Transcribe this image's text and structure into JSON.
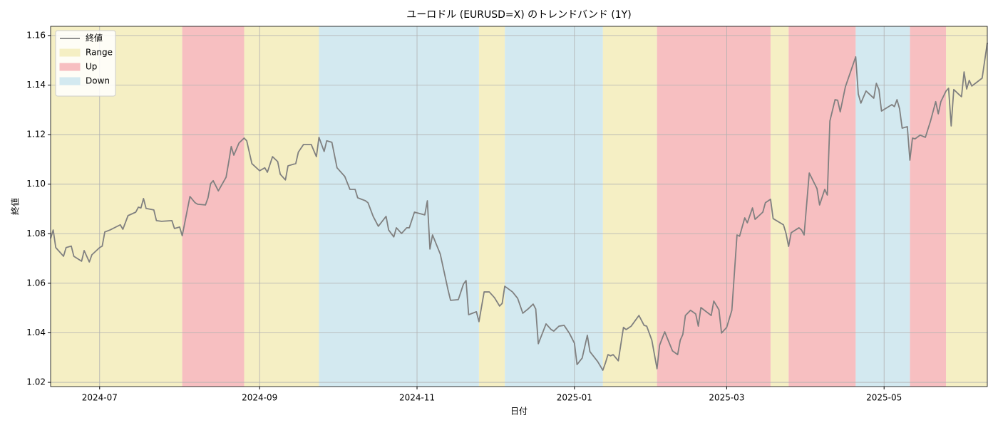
{
  "chart_data": {
    "type": "line",
    "title": "ユーロドル (EURUSD=X) のトレンドバンド (1Y)",
    "x_label": "日付",
    "y_label": "終値",
    "xlim": [
      "2024-06-12",
      "2025-06-10"
    ],
    "xticks": [
      "2024-07",
      "2024-09",
      "2024-11",
      "2025-01",
      "2025-03",
      "2025-05"
    ],
    "ylim": [
      1.0183,
      1.1637
    ],
    "yticks": [
      1.02,
      1.04,
      1.06,
      1.08,
      {
        "value": 1.1,
        "label": "1.10"
      },
      1.12,
      1.14,
      1.16
    ],
    "grid": true,
    "legend": "upper left",
    "x": [
      "2024-06-12",
      "2024-06-13",
      "2024-06-14",
      "2024-06-17",
      "2024-06-18",
      "2024-06-20",
      "2024-06-21",
      "2024-06-24",
      "2024-06-25",
      "2024-06-27",
      "2024-06-28",
      "2024-07-01",
      "2024-07-02",
      "2024-07-03",
      "2024-07-05",
      "2024-07-09",
      "2024-07-10",
      "2024-07-12",
      "2024-07-15",
      "2024-07-16",
      "2024-07-17",
      "2024-07-18",
      "2024-07-19",
      "2024-07-22",
      "2024-07-23",
      "2024-07-25",
      "2024-07-29",
      "2024-07-30",
      "2024-08-01",
      "2024-08-02",
      "2024-08-05",
      "2024-08-07",
      "2024-08-08",
      "2024-08-11",
      "2024-08-12",
      "2024-08-13",
      "2024-08-14",
      "2024-08-16",
      "2024-08-19",
      "2024-08-20",
      "2024-08-21",
      "2024-08-22",
      "2024-08-24",
      "2024-08-26",
      "2024-08-27",
      "2024-08-29",
      "2024-09-01",
      "2024-09-03",
      "2024-09-04",
      "2024-09-06",
      "2024-09-08",
      "2024-09-09",
      "2024-09-11",
      "2024-09-12",
      "2024-09-15",
      "2024-09-16",
      "2024-09-18",
      "2024-09-21",
      "2024-09-23",
      "2024-09-24",
      "2024-09-26",
      "2024-09-27",
      "2024-09-29",
      "2024-10-01",
      "2024-10-04",
      "2024-10-06",
      "2024-10-08",
      "2024-10-09",
      "2024-10-12",
      "2024-10-13",
      "2024-10-15",
      "2024-10-17",
      "2024-10-20",
      "2024-10-21",
      "2024-10-23",
      "2024-10-24",
      "2024-10-26",
      "2024-10-28",
      "2024-10-29",
      "2024-10-31",
      "2024-11-04",
      "2024-11-05",
      "2024-11-06",
      "2024-11-07",
      "2024-11-10",
      "2024-11-13",
      "2024-11-14",
      "2024-11-17",
      "2024-11-19",
      "2024-11-20",
      "2024-11-21",
      "2024-11-24",
      "2024-11-25",
      "2024-11-27",
      "2024-11-29",
      "2024-12-01",
      "2024-12-03",
      "2024-12-04",
      "2024-12-05",
      "2024-12-08",
      "2024-12-10",
      "2024-12-12",
      "2024-12-14",
      "2024-12-16",
      "2024-12-17",
      "2024-12-18",
      "2024-12-21",
      "2024-12-23",
      "2024-12-24",
      "2024-12-26",
      "2024-12-28",
      "2024-12-30",
      "2025-01-01",
      "2025-01-02",
      "2025-01-04",
      "2025-01-06",
      "2025-01-07",
      "2025-01-10",
      "2025-01-12",
      "2025-01-13",
      "2025-01-14",
      "2025-01-15",
      "2025-01-16",
      "2025-01-18",
      "2025-01-20",
      "2025-01-21",
      "2025-01-23",
      "2025-01-26",
      "2025-01-28",
      "2025-01-29",
      "2025-01-31",
      "2025-02-02",
      "2025-02-03",
      "2025-02-05",
      "2025-02-06",
      "2025-02-08",
      "2025-02-10",
      "2025-02-11",
      "2025-02-12",
      "2025-02-13",
      "2025-02-15",
      "2025-02-17",
      "2025-02-18",
      "2025-02-19",
      "2025-02-23",
      "2025-02-24",
      "2025-02-26",
      "2025-02-27",
      "2025-03-01",
      "2025-03-03",
      "2025-03-05",
      "2025-03-06",
      "2025-03-08",
      "2025-03-09",
      "2025-03-11",
      "2025-03-12",
      "2025-03-15",
      "2025-03-16",
      "2025-03-18",
      "2025-03-19",
      "2025-03-23",
      "2025-03-24",
      "2025-03-25",
      "2025-03-26",
      "2025-03-29",
      "2025-03-30",
      "2025-03-31",
      "2025-04-02",
      "2025-04-05",
      "2025-04-06",
      "2025-04-08",
      "2025-04-09",
      "2025-04-10",
      "2025-04-12",
      "2025-04-13",
      "2025-04-14",
      "2025-04-16",
      "2025-04-20",
      "2025-04-21",
      "2025-04-22",
      "2025-04-24",
      "2025-04-27",
      "2025-04-28",
      "2025-04-29",
      "2025-04-30",
      "2025-05-04",
      "2025-05-05",
      "2025-05-06",
      "2025-05-07",
      "2025-05-08",
      "2025-05-10",
      "2025-05-11",
      "2025-05-12",
      "2025-05-13",
      "2025-05-15",
      "2025-05-17",
      "2025-05-19",
      "2025-05-21",
      "2025-05-22",
      "2025-05-23",
      "2025-05-25",
      "2025-05-26",
      "2025-05-27",
      "2025-05-28",
      "2025-05-30",
      "2025-05-31",
      "2025-06-01",
      "2025-06-02",
      "2025-06-03",
      "2025-06-04",
      "2025-06-08",
      "2025-06-10"
    ],
    "series": [
      {
        "name": "終値",
        "color": "#808080",
        "values": [
          1.0781,
          1.0815,
          1.0744,
          1.0709,
          1.0744,
          1.075,
          1.0709,
          1.0689,
          1.0732,
          1.0686,
          1.0715,
          1.0744,
          1.075,
          1.0807,
          1.0815,
          1.0836,
          1.0818,
          1.0873,
          1.0887,
          1.0907,
          1.0904,
          1.0942,
          1.0902,
          1.0896,
          1.0853,
          1.085,
          1.0853,
          1.0821,
          1.0827,
          1.0792,
          1.095,
          1.0925,
          1.0919,
          1.0916,
          1.0945,
          1.1002,
          1.1014,
          1.0973,
          1.1028,
          1.1088,
          1.1152,
          1.1117,
          1.1166,
          1.1186,
          1.1175,
          1.1083,
          1.1054,
          1.1066,
          1.1048,
          1.1111,
          1.1091,
          1.104,
          1.1017,
          1.1074,
          1.1083,
          1.1129,
          1.116,
          1.116,
          1.1111,
          1.1189,
          1.1132,
          1.1175,
          1.1169,
          1.1066,
          1.1031,
          1.0979,
          1.0979,
          1.0945,
          1.0933,
          1.0925,
          1.087,
          1.083,
          1.087,
          1.0815,
          1.0787,
          1.0824,
          1.0801,
          1.0824,
          1.0824,
          1.0887,
          1.0876,
          1.0933,
          1.0738,
          1.0795,
          1.0718,
          1.0574,
          1.0531,
          1.0534,
          1.0597,
          1.0611,
          1.0473,
          1.0485,
          1.0445,
          1.0565,
          1.0565,
          1.0542,
          1.0508,
          1.0519,
          1.0588,
          1.0565,
          1.0539,
          1.0479,
          1.0496,
          1.0516,
          1.0496,
          1.0356,
          1.0436,
          1.0413,
          1.0407,
          1.0427,
          1.043,
          1.0399,
          1.0358,
          1.0272,
          1.0298,
          1.039,
          1.0324,
          1.0284,
          1.0249,
          1.0278,
          1.0312,
          1.0307,
          1.0312,
          1.0287,
          1.0422,
          1.0413,
          1.0427,
          1.047,
          1.043,
          1.0427,
          1.037,
          1.0255,
          1.035,
          1.0404,
          1.0378,
          1.0327,
          1.0312,
          1.037,
          1.0393,
          1.047,
          1.0491,
          1.0476,
          1.0427,
          1.0502,
          1.047,
          1.0528,
          1.0493,
          1.0399,
          1.0422,
          1.0491,
          1.0795,
          1.079,
          1.0864,
          1.0844,
          1.0904,
          1.0858,
          1.0887,
          1.0925,
          1.0939,
          1.0861,
          1.0836,
          1.0801,
          1.0749,
          1.0804,
          1.0824,
          1.0815,
          1.0795,
          1.1045,
          1.0982,
          1.0916,
          1.0979,
          1.0956,
          1.1255,
          1.1341,
          1.1339,
          1.1292,
          1.1393,
          1.1514,
          1.1364,
          1.1327,
          1.1376,
          1.1347,
          1.1407,
          1.1382,
          1.1295,
          1.1321,
          1.1313,
          1.1341,
          1.1304,
          1.1226,
          1.1232,
          1.1097,
          1.1186,
          1.1183,
          1.1198,
          1.1189,
          1.1255,
          1.1333,
          1.1284,
          1.1333,
          1.1376,
          1.1387,
          1.1235,
          1.1382,
          1.1362,
          1.1353,
          1.1453,
          1.1384,
          1.1419,
          1.1396,
          1.1428,
          1.1571
        ]
      }
    ],
    "bands": [
      {
        "name": "Range",
        "color": "#f5efc4",
        "spans": [
          [
            "2024-06-12",
            "2024-08-02"
          ],
          [
            "2024-08-26",
            "2024-09-24"
          ],
          [
            "2024-11-25",
            "2024-12-05"
          ],
          [
            "2025-01-12",
            "2025-02-02"
          ],
          [
            "2025-03-18",
            "2025-03-25"
          ],
          [
            "2025-05-25",
            "2025-06-10"
          ]
        ]
      },
      {
        "name": "Up",
        "color": "#f7bfc1",
        "spans": [
          [
            "2024-08-02",
            "2024-08-26"
          ],
          [
            "2025-02-02",
            "2025-03-18"
          ],
          [
            "2025-03-25",
            "2025-04-20"
          ],
          [
            "2025-05-11",
            "2025-05-25"
          ]
        ]
      },
      {
        "name": "Down",
        "color": "#d3e9f0",
        "spans": [
          [
            "2024-09-24",
            "2024-11-25"
          ],
          [
            "2024-12-05",
            "2025-01-12"
          ],
          [
            "2025-04-20",
            "2025-05-11"
          ]
        ]
      }
    ]
  }
}
